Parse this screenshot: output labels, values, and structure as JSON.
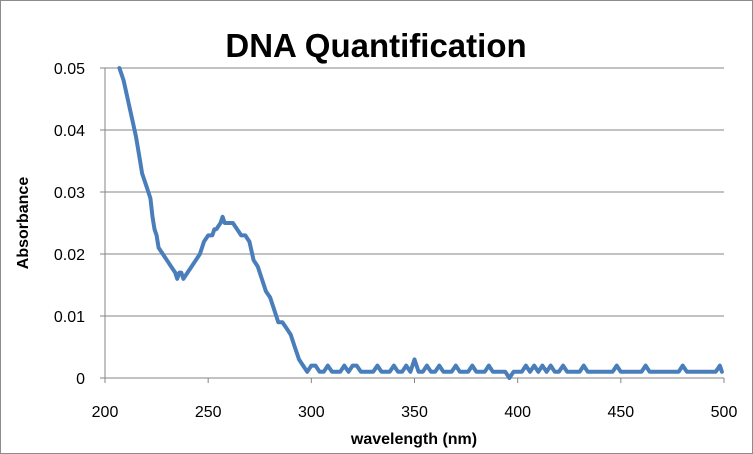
{
  "chart_data": {
    "type": "line",
    "title": "DNA Quantification",
    "xlabel": "wavelength (nm)",
    "ylabel": "Absorbance",
    "xlim": [
      200,
      500
    ],
    "ylim": [
      0,
      0.05
    ],
    "x_ticks": [
      "200",
      "250",
      "300",
      "350",
      "400",
      "450",
      "500"
    ],
    "y_ticks": [
      "0",
      "0.01",
      "0.02",
      "0.03",
      "0.04",
      "0.05"
    ],
    "grid": "horizontal",
    "legend": "none",
    "series": [
      {
        "color": "#4a7ebb",
        "points": [
          [
            207,
            0.05
          ],
          [
            209,
            0.048
          ],
          [
            211,
            0.045
          ],
          [
            213,
            0.042
          ],
          [
            215,
            0.039
          ],
          [
            216,
            0.037
          ],
          [
            217,
            0.035
          ],
          [
            218,
            0.033
          ],
          [
            220,
            0.031
          ],
          [
            222,
            0.029
          ],
          [
            223,
            0.026
          ],
          [
            224,
            0.024
          ],
          [
            225,
            0.023
          ],
          [
            226,
            0.021
          ],
          [
            228,
            0.02
          ],
          [
            230,
            0.019
          ],
          [
            232,
            0.018
          ],
          [
            234,
            0.017
          ],
          [
            235,
            0.016
          ],
          [
            236,
            0.017
          ],
          [
            237,
            0.017
          ],
          [
            238,
            0.016
          ],
          [
            240,
            0.017
          ],
          [
            242,
            0.018
          ],
          [
            244,
            0.019
          ],
          [
            246,
            0.02
          ],
          [
            248,
            0.022
          ],
          [
            250,
            0.023
          ],
          [
            252,
            0.023
          ],
          [
            253,
            0.024
          ],
          [
            254,
            0.024
          ],
          [
            256,
            0.025
          ],
          [
            257,
            0.026
          ],
          [
            258,
            0.025
          ],
          [
            260,
            0.025
          ],
          [
            262,
            0.025
          ],
          [
            264,
            0.024
          ],
          [
            266,
            0.023
          ],
          [
            268,
            0.023
          ],
          [
            270,
            0.022
          ],
          [
            272,
            0.019
          ],
          [
            274,
            0.018
          ],
          [
            276,
            0.016
          ],
          [
            278,
            0.014
          ],
          [
            280,
            0.013
          ],
          [
            282,
            0.011
          ],
          [
            284,
            0.009
          ],
          [
            286,
            0.009
          ],
          [
            288,
            0.008
          ],
          [
            290,
            0.007
          ],
          [
            292,
            0.005
          ],
          [
            294,
            0.003
          ],
          [
            296,
            0.002
          ],
          [
            298,
            0.001
          ],
          [
            300,
            0.002
          ],
          [
            302,
            0.002
          ],
          [
            304,
            0.001
          ],
          [
            306,
            0.001
          ],
          [
            308,
            0.002
          ],
          [
            310,
            0.001
          ],
          [
            312,
            0.001
          ],
          [
            314,
            0.001
          ],
          [
            316,
            0.002
          ],
          [
            318,
            0.001
          ],
          [
            320,
            0.002
          ],
          [
            322,
            0.002
          ],
          [
            324,
            0.001
          ],
          [
            326,
            0.001
          ],
          [
            328,
            0.001
          ],
          [
            330,
            0.001
          ],
          [
            332,
            0.002
          ],
          [
            334,
            0.001
          ],
          [
            336,
            0.001
          ],
          [
            338,
            0.001
          ],
          [
            340,
            0.002
          ],
          [
            342,
            0.001
          ],
          [
            344,
            0.001
          ],
          [
            346,
            0.002
          ],
          [
            348,
            0.001
          ],
          [
            350,
            0.003
          ],
          [
            352,
            0.001
          ],
          [
            354,
            0.001
          ],
          [
            356,
            0.002
          ],
          [
            358,
            0.001
          ],
          [
            360,
            0.001
          ],
          [
            362,
            0.002
          ],
          [
            364,
            0.001
          ],
          [
            366,
            0.001
          ],
          [
            368,
            0.001
          ],
          [
            370,
            0.002
          ],
          [
            372,
            0.001
          ],
          [
            374,
            0.001
          ],
          [
            376,
            0.001
          ],
          [
            378,
            0.002
          ],
          [
            380,
            0.001
          ],
          [
            382,
            0.001
          ],
          [
            384,
            0.001
          ],
          [
            386,
            0.002
          ],
          [
            388,
            0.001
          ],
          [
            390,
            0.001
          ],
          [
            392,
            0.001
          ],
          [
            394,
            0.001
          ],
          [
            396,
            0.0
          ],
          [
            398,
            0.001
          ],
          [
            400,
            0.001
          ],
          [
            402,
            0.001
          ],
          [
            404,
            0.002
          ],
          [
            406,
            0.001
          ],
          [
            408,
            0.002
          ],
          [
            410,
            0.001
          ],
          [
            412,
            0.002
          ],
          [
            414,
            0.001
          ],
          [
            416,
            0.002
          ],
          [
            418,
            0.001
          ],
          [
            420,
            0.001
          ],
          [
            422,
            0.002
          ],
          [
            424,
            0.001
          ],
          [
            426,
            0.001
          ],
          [
            428,
            0.001
          ],
          [
            430,
            0.001
          ],
          [
            432,
            0.002
          ],
          [
            434,
            0.001
          ],
          [
            436,
            0.001
          ],
          [
            438,
            0.001
          ],
          [
            440,
            0.001
          ],
          [
            442,
            0.001
          ],
          [
            444,
            0.001
          ],
          [
            446,
            0.001
          ],
          [
            448,
            0.002
          ],
          [
            450,
            0.001
          ],
          [
            452,
            0.001
          ],
          [
            454,
            0.001
          ],
          [
            456,
            0.001
          ],
          [
            458,
            0.001
          ],
          [
            460,
            0.001
          ],
          [
            462,
            0.002
          ],
          [
            464,
            0.001
          ],
          [
            466,
            0.001
          ],
          [
            468,
            0.001
          ],
          [
            470,
            0.001
          ],
          [
            472,
            0.001
          ],
          [
            474,
            0.001
          ],
          [
            476,
            0.001
          ],
          [
            478,
            0.001
          ],
          [
            480,
            0.002
          ],
          [
            482,
            0.001
          ],
          [
            484,
            0.001
          ],
          [
            486,
            0.001
          ],
          [
            488,
            0.001
          ],
          [
            490,
            0.001
          ],
          [
            492,
            0.001
          ],
          [
            494,
            0.001
          ],
          [
            496,
            0.001
          ],
          [
            498,
            0.002
          ],
          [
            499,
            0.001
          ]
        ]
      }
    ]
  }
}
